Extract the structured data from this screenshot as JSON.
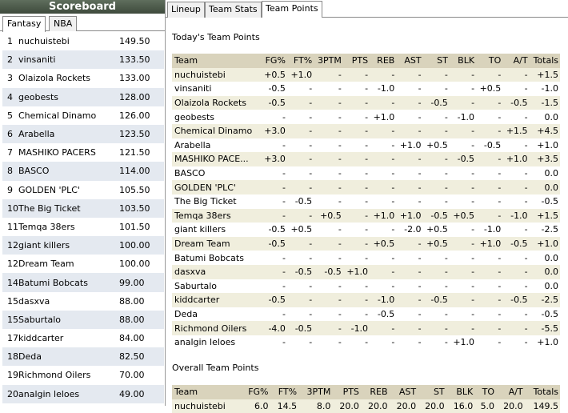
{
  "scoreboard": {
    "title": "Scoreboard",
    "tabs": [
      "Fantasy",
      "NBA"
    ],
    "rows": [
      {
        "rank": "1",
        "name": "nuchuistebi",
        "score": "149.50"
      },
      {
        "rank": "2",
        "name": "vinsaniti",
        "score": "133.50"
      },
      {
        "rank": "3",
        "name": "Olaizola Rockets",
        "score": "133.00"
      },
      {
        "rank": "4",
        "name": "geobests",
        "score": "128.00"
      },
      {
        "rank": "5",
        "name": "Chemical Dinamo",
        "score": "126.00"
      },
      {
        "rank": "6",
        "name": "Arabella",
        "score": "123.50"
      },
      {
        "rank": "7",
        "name": "MASHIKO PACERS",
        "score": "121.50"
      },
      {
        "rank": "8",
        "name": "BASCO",
        "score": "114.00"
      },
      {
        "rank": "9",
        "name": "GOLDEN 'PLC'",
        "score": "105.50"
      },
      {
        "rank": "10",
        "name": "The Big Ticket",
        "score": "103.50"
      },
      {
        "rank": "11",
        "name": "Temqa 38ers",
        "score": "101.50"
      },
      {
        "rank": "12",
        "name": "giant killers",
        "score": "100.00"
      },
      {
        "rank": "12",
        "name": "Dream Team",
        "score": "100.00"
      },
      {
        "rank": "14",
        "name": "Batumi Bobcats",
        "score": "99.00"
      },
      {
        "rank": "15",
        "name": "dasxva",
        "score": "88.00"
      },
      {
        "rank": "15",
        "name": "Saburtalo",
        "score": "88.00"
      },
      {
        "rank": "17",
        "name": "kiddcarter",
        "score": "84.00"
      },
      {
        "rank": "18",
        "name": "Deda",
        "score": "82.50"
      },
      {
        "rank": "19",
        "name": "Richmond Oilers",
        "score": "70.00"
      },
      {
        "rank": "20",
        "name": "analgin leloes",
        "score": "49.00"
      }
    ]
  },
  "tabs": [
    "Lineup",
    "Team Stats",
    "Team Points"
  ],
  "today": {
    "title": "Today's Team Points",
    "headers": [
      "Team",
      "FG%",
      "FT%",
      "3PTM",
      "PTS",
      "REB",
      "AST",
      "ST",
      "BLK",
      "TO",
      "A/T",
      "Totals"
    ],
    "rows": [
      [
        "nuchuistebi",
        "+0.5",
        "+1.0",
        "-",
        "-",
        "-",
        "-",
        "-",
        "-",
        "-",
        "-",
        "+1.5"
      ],
      [
        "vinsaniti",
        "-0.5",
        "-",
        "-",
        "-",
        "-1.0",
        "-",
        "-",
        "-",
        "+0.5",
        "-",
        "-1.0"
      ],
      [
        "Olaizola Rockets",
        "-0.5",
        "-",
        "-",
        "-",
        "-",
        "-",
        "-0.5",
        "-",
        "-",
        "-0.5",
        "-1.5"
      ],
      [
        "geobests",
        "-",
        "-",
        "-",
        "-",
        "+1.0",
        "-",
        "-",
        "-1.0",
        "-",
        "-",
        "0.0"
      ],
      [
        "Chemical Dinamo",
        "+3.0",
        "-",
        "-",
        "-",
        "-",
        "-",
        "-",
        "-",
        "-",
        "+1.5",
        "+4.5"
      ],
      [
        "Arabella",
        "-",
        "-",
        "-",
        "-",
        "-",
        "+1.0",
        "+0.5",
        "-",
        "-0.5",
        "-",
        "+1.0"
      ],
      [
        "MASHIKO PACE...",
        "+3.0",
        "-",
        "-",
        "-",
        "-",
        "-",
        "-",
        "-0.5",
        "-",
        "+1.0",
        "+3.5"
      ],
      [
        "BASCO",
        "-",
        "-",
        "-",
        "-",
        "-",
        "-",
        "-",
        "-",
        "-",
        "-",
        "0.0"
      ],
      [
        "GOLDEN 'PLC'",
        "-",
        "-",
        "-",
        "-",
        "-",
        "-",
        "-",
        "-",
        "-",
        "-",
        "0.0"
      ],
      [
        "The Big Ticket",
        "-",
        "-0.5",
        "-",
        "-",
        "-",
        "-",
        "-",
        "-",
        "-",
        "-",
        "-0.5"
      ],
      [
        "Temqa 38ers",
        "-",
        "-",
        "+0.5",
        "-",
        "+1.0",
        "+1.0",
        "-0.5",
        "+0.5",
        "-",
        "-1.0",
        "+1.5"
      ],
      [
        "giant killers",
        "-0.5",
        "+0.5",
        "-",
        "-",
        "-",
        "-2.0",
        "+0.5",
        "-",
        "-1.0",
        "-",
        "-2.5"
      ],
      [
        "Dream Team",
        "-0.5",
        "-",
        "-",
        "-",
        "+0.5",
        "-",
        "+0.5",
        "-",
        "+1.0",
        "-0.5",
        "+1.0"
      ],
      [
        "Batumi Bobcats",
        "-",
        "-",
        "-",
        "-",
        "-",
        "-",
        "-",
        "-",
        "-",
        "-",
        "0.0"
      ],
      [
        "dasxva",
        "-",
        "-0.5",
        "-0.5",
        "+1.0",
        "-",
        "-",
        "-",
        "-",
        "-",
        "-",
        "0.0"
      ],
      [
        "Saburtalo",
        "-",
        "-",
        "-",
        "-",
        "-",
        "-",
        "-",
        "-",
        "-",
        "-",
        "0.0"
      ],
      [
        "kiddcarter",
        "-0.5",
        "-",
        "-",
        "-",
        "-1.0",
        "-",
        "-0.5",
        "-",
        "-",
        "-0.5",
        "-2.5"
      ],
      [
        "Deda",
        "-",
        "-",
        "-",
        "-",
        "-0.5",
        "-",
        "-",
        "-",
        "-",
        "-",
        "-0.5"
      ],
      [
        "Richmond Oilers",
        "-4.0",
        "-0.5",
        "-",
        "-1.0",
        "-",
        "-",
        "-",
        "-",
        "-",
        "-",
        "-5.5"
      ],
      [
        "analgin leloes",
        "-",
        "-",
        "-",
        "-",
        "-",
        "-",
        "-",
        "+1.0",
        "-",
        "-",
        "+1.0"
      ]
    ]
  },
  "overall": {
    "title": "Overall Team Points",
    "headers": [
      "Team",
      "FG%",
      "FT%",
      "3PTM",
      "PTS",
      "REB",
      "AST",
      "ST",
      "BLK",
      "TO",
      "A/T",
      "Totals"
    ],
    "rows": [
      [
        "nuchuistebi",
        "6.0",
        "14.5",
        "8.0",
        "20.0",
        "20.0",
        "20.0",
        "20.0",
        "16.0",
        "5.0",
        "20.0",
        "149.5"
      ]
    ]
  }
}
